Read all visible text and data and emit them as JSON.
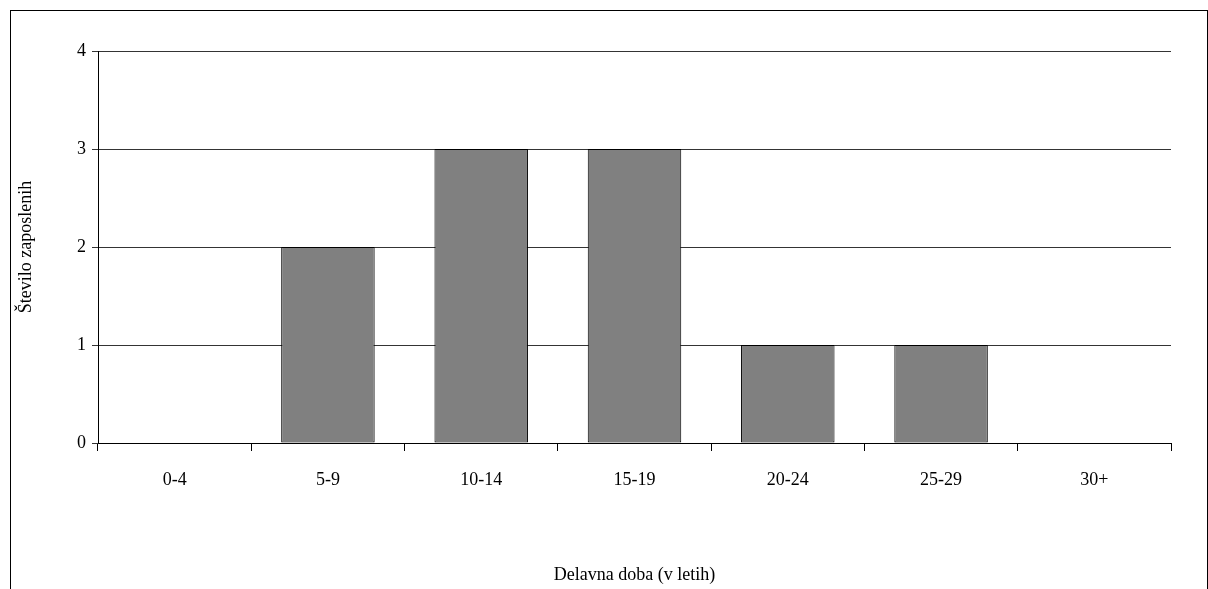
{
  "chart_data": {
    "type": "bar",
    "xlabel": "Delavna doba (v letih)",
    "ylabel": "Število zaposlenih",
    "categories": [
      "0-4",
      "5-9",
      "10-14",
      "15-19",
      "20-24",
      "25-29",
      "30+"
    ],
    "values": [
      0,
      2,
      3,
      3,
      1,
      1,
      0
    ],
    "color": "#808080",
    "ylim": [
      0,
      4
    ],
    "yticks": [
      0,
      1,
      2,
      3,
      4
    ],
    "grid": "y",
    "legend": false
  }
}
